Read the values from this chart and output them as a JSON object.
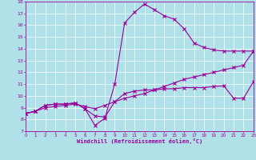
{
  "xlabel": "Windchill (Refroidissement éolien,°C)",
  "xlim": [
    0,
    23
  ],
  "ylim": [
    7,
    18
  ],
  "xticks": [
    0,
    1,
    2,
    3,
    4,
    5,
    6,
    7,
    8,
    9,
    10,
    11,
    12,
    13,
    14,
    15,
    16,
    17,
    18,
    19,
    20,
    21,
    22,
    23
  ],
  "yticks": [
    7,
    8,
    9,
    10,
    11,
    12,
    13,
    14,
    15,
    16,
    17,
    18
  ],
  "bg_color": "#b0e0e8",
  "line_color": "#990099",
  "line1_x": [
    0,
    1,
    2,
    3,
    4,
    5,
    6,
    7,
    8,
    9,
    10,
    11,
    12,
    13,
    14,
    15,
    16,
    17,
    18,
    19,
    20,
    21,
    22,
    23
  ],
  "line1_y": [
    8.5,
    8.7,
    9.2,
    9.3,
    9.3,
    9.4,
    8.9,
    7.5,
    8.1,
    11.0,
    16.2,
    17.1,
    17.8,
    17.3,
    16.8,
    16.5,
    15.7,
    14.5,
    14.1,
    13.9,
    13.8,
    13.8,
    13.8,
    13.8
  ],
  "line2_x": [
    0,
    1,
    2,
    3,
    4,
    5,
    6,
    7,
    8,
    9,
    10,
    11,
    12,
    13,
    14,
    15,
    16,
    17,
    18,
    19,
    20,
    21,
    22,
    23
  ],
  "line2_y": [
    8.5,
    8.7,
    9.2,
    9.3,
    9.3,
    9.4,
    8.9,
    8.3,
    8.2,
    9.5,
    10.2,
    10.4,
    10.5,
    10.5,
    10.6,
    10.6,
    10.7,
    10.7,
    10.7,
    10.8,
    10.85,
    9.8,
    9.8,
    11.2
  ],
  "line3_x": [
    0,
    1,
    2,
    3,
    4,
    5,
    6,
    7,
    8,
    9,
    10,
    11,
    12,
    13,
    14,
    15,
    16,
    17,
    18,
    19,
    20,
    21,
    22,
    23
  ],
  "line3_y": [
    8.5,
    8.7,
    9.0,
    9.1,
    9.2,
    9.3,
    9.1,
    8.9,
    9.2,
    9.5,
    9.8,
    10.0,
    10.2,
    10.5,
    10.8,
    11.1,
    11.4,
    11.6,
    11.8,
    12.0,
    12.2,
    12.4,
    12.6,
    13.8
  ]
}
